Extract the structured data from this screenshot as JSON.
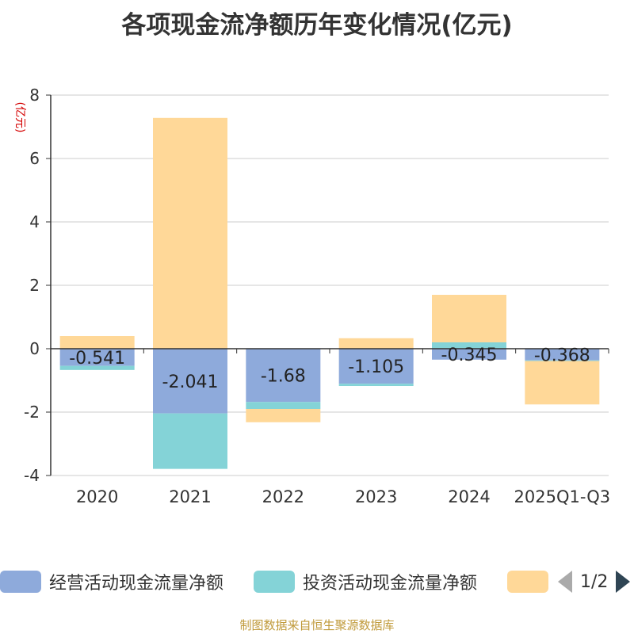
{
  "chart_data": {
    "type": "bar",
    "stacked": true,
    "title": "各项现金流净额历年变化情况(亿元)",
    "unit_label": "(亿元)",
    "categories": [
      "2020",
      "2021",
      "2022",
      "2023",
      "2024",
      "2025Q1-Q3"
    ],
    "ylim": [
      -4,
      8
    ],
    "yticks": [
      -4,
      -2,
      0,
      2,
      4,
      6,
      8
    ],
    "grid": true,
    "legend_position": "bottom",
    "series": [
      {
        "name": "经营活动现金流量净额",
        "color": "#8eaadb",
        "values": [
          -0.541,
          -2.041,
          -1.68,
          -1.105,
          -0.345,
          -0.368
        ],
        "labels": [
          "-0.541",
          "-2.041",
          "-1.68",
          "-1.105",
          "-0.345",
          "-0.368"
        ]
      },
      {
        "name": "投资活动现金流量净额",
        "color": "#84d3d7",
        "values": [
          -0.13,
          -1.75,
          -0.22,
          -0.07,
          0.2,
          -0.02
        ]
      },
      {
        "name": "",
        "color": "#ffd898",
        "values": [
          0.4,
          7.28,
          -0.42,
          0.33,
          1.5,
          -1.37
        ]
      }
    ]
  },
  "legend": {
    "page": "1/2"
  },
  "source": "制图数据来自恒生聚源数据库"
}
